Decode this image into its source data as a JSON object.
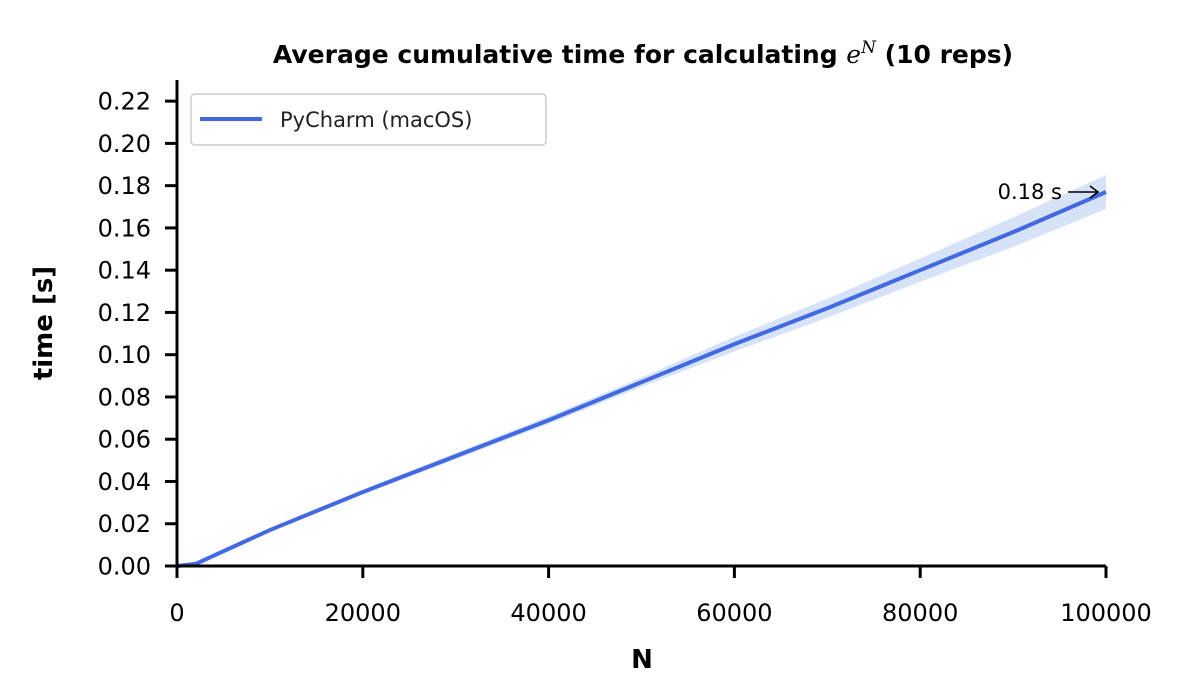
{
  "chart_data": {
    "type": "line",
    "title": {
      "prefix": "Average cumulative time for calculating ",
      "math_base": "e",
      "math_exp": "N",
      "suffix": " (10 reps)"
    },
    "xlabel": "N",
    "ylabel": "time [s]",
    "xlim": [
      0,
      100000
    ],
    "ylim": [
      0,
      0.23
    ],
    "x_ticks": [
      0,
      20000,
      40000,
      60000,
      80000,
      100000
    ],
    "x_tick_labels": [
      "0",
      "20000",
      "40000",
      "60000",
      "80000",
      "100000"
    ],
    "y_ticks": [
      0,
      0.02,
      0.04,
      0.06,
      0.08,
      0.1,
      0.12,
      0.14,
      0.16,
      0.18,
      0.2,
      0.22
    ],
    "y_tick_labels": [
      "0.00",
      "0.02",
      "0.04",
      "0.06",
      "0.08",
      "0.10",
      "0.12",
      "0.14",
      "0.16",
      "0.18",
      "0.20",
      "0.22"
    ],
    "grid": false,
    "legend_position": "top-left",
    "series": [
      {
        "name": "PyCharm (macOS)",
        "color": "#4169e1",
        "band_color": "#d6e2f7",
        "x": [
          0,
          2000,
          7000,
          10000,
          20000,
          30000,
          40000,
          50000,
          60000,
          70000,
          80000,
          90000,
          100000
        ],
        "y": [
          0,
          0.001,
          0.011,
          0.017,
          0.035,
          0.052,
          0.069,
          0.087,
          0.105,
          0.122,
          0.14,
          0.158,
          0.177
        ],
        "band_lower": [
          0,
          0.0008,
          0.0105,
          0.0162,
          0.0338,
          0.0505,
          0.0672,
          0.0848,
          0.1015,
          0.1175,
          0.1345,
          0.151,
          0.169
        ],
        "band_upper": [
          0,
          0.0012,
          0.0115,
          0.0178,
          0.0362,
          0.0535,
          0.0708,
          0.0892,
          0.1085,
          0.1265,
          0.1455,
          0.165,
          0.185
        ]
      }
    ],
    "annotation": {
      "text": "0.18 s",
      "x": 100000,
      "y": 0.177
    }
  }
}
